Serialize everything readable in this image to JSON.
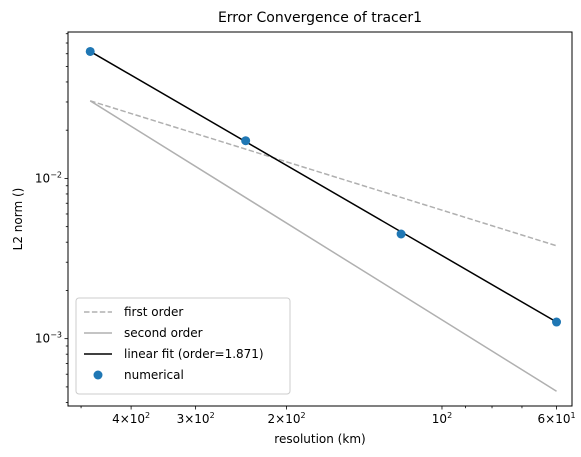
{
  "chart_data": {
    "type": "line",
    "title": "Error Convergence of tracer1",
    "xlabel": "resolution (km)",
    "ylabel": "L2 norm ()",
    "x_scale": "log",
    "y_scale": "log",
    "x_reversed": true,
    "xlim": [
      530,
      56
    ],
    "ylim": [
      0.00038,
      0.082
    ],
    "x_ticks_major": [
      {
        "value": 400,
        "base": "4",
        "exp": "2"
      },
      {
        "value": 300,
        "base": "3",
        "exp": "2"
      },
      {
        "value": 200,
        "base": "2",
        "exp": "2"
      },
      {
        "value": 100,
        "base": "",
        "exp": "2"
      },
      {
        "value": 60,
        "base": "6",
        "exp": "1"
      }
    ],
    "y_ticks_major": [
      {
        "value": 0.001,
        "exp": "−3"
      },
      {
        "value": 0.01,
        "exp": "−2"
      }
    ],
    "tick_base_label": "10",
    "tick_times_label": "×",
    "series": [
      {
        "name": "first order",
        "style": "dashed",
        "color": "#b0b0b0",
        "x": [
          480,
          60
        ],
        "y": [
          0.0305,
          0.0038
        ]
      },
      {
        "name": "second order",
        "style": "solid",
        "color": "#b0b0b0",
        "x": [
          480,
          60
        ],
        "y": [
          0.0305,
          0.00047
        ]
      },
      {
        "name": "linear fit (order=1.871)",
        "style": "solid",
        "color": "#000000",
        "x": [
          480,
          60
        ],
        "y": [
          0.062,
          0.00127
        ]
      },
      {
        "name": "numerical",
        "style": "markers",
        "color": "#1f77b4",
        "x": [
          480,
          240,
          120,
          60
        ],
        "y": [
          0.062,
          0.0172,
          0.0045,
          0.00127
        ]
      }
    ],
    "legend_position": "lower-left",
    "grid": false
  }
}
